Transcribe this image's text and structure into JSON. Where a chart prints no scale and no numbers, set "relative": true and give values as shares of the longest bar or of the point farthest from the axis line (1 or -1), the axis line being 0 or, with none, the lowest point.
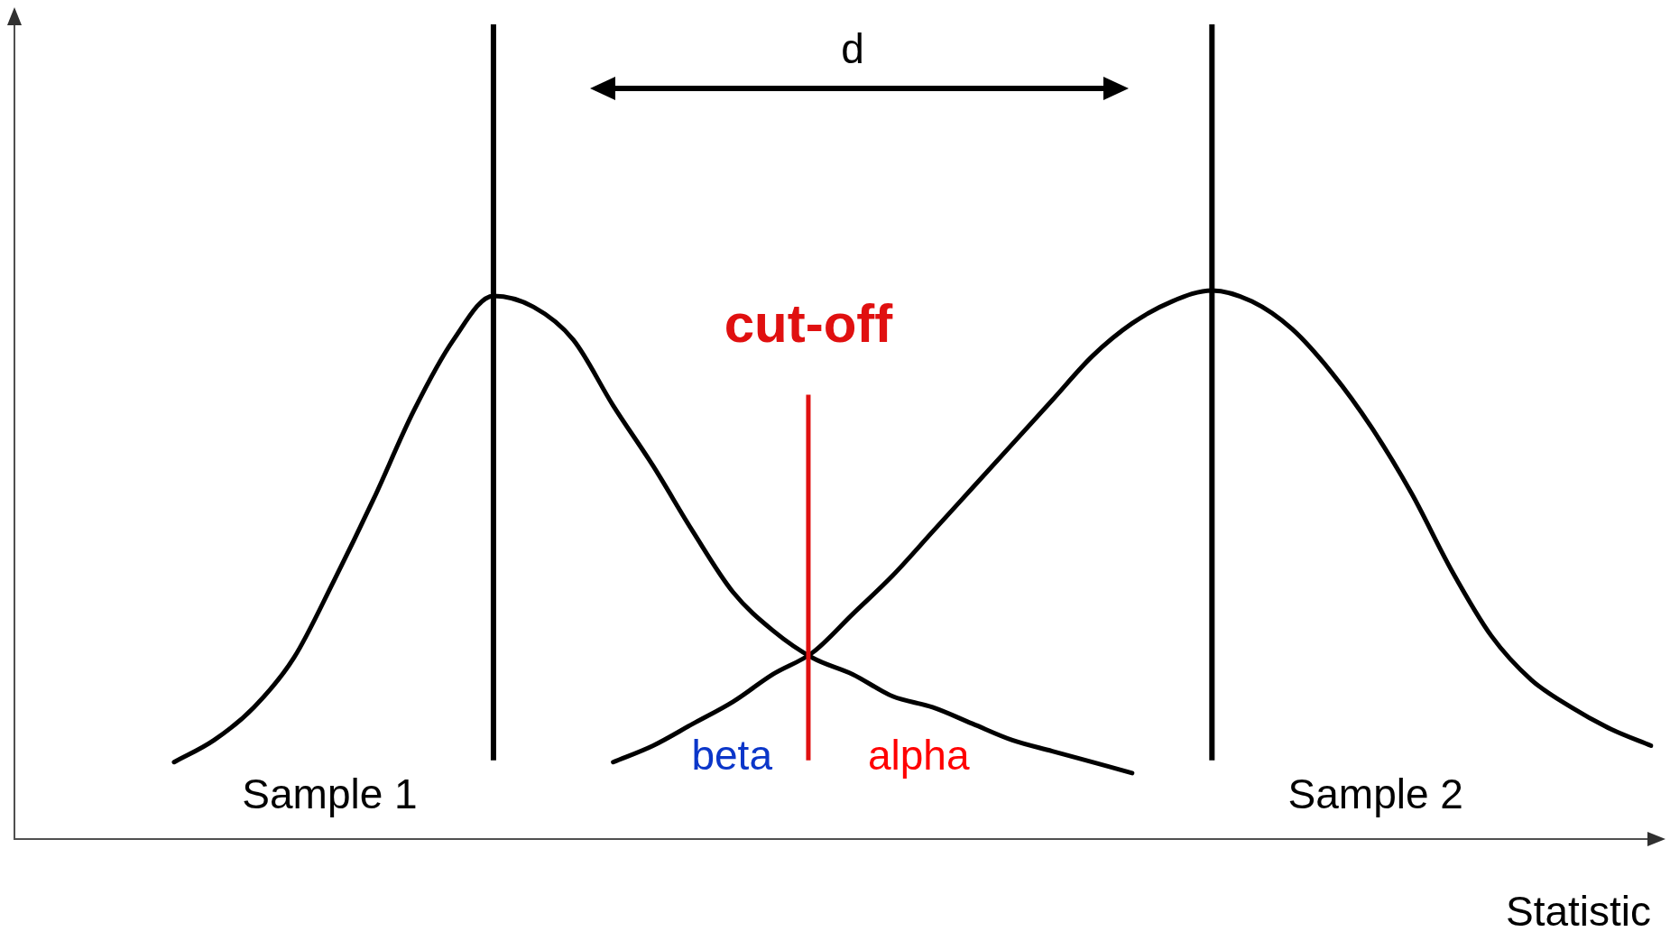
{
  "chart_data": {
    "type": "line",
    "relative": true,
    "xlabel": "Statistic",
    "categories": [
      null,
      null,
      null,
      null,
      null,
      null,
      null,
      null,
      null,
      null,
      null,
      null,
      null,
      null,
      null,
      null,
      null,
      null,
      null,
      null,
      null,
      null,
      null,
      null,
      null,
      null,
      null,
      null,
      null,
      null,
      null,
      null,
      null,
      null,
      null,
      null,
      null,
      null,
      null,
      null,
      null,
      null
    ],
    "series": [
      {
        "name": "Sample 1",
        "color": "#000000",
        "values": [
          null,
          null,
          null,
          null,
          0.14,
          0.18,
          0.24,
          0.33,
          0.47,
          0.62,
          0.78,
          0.91,
          0.99,
          0.97,
          0.91,
          0.79,
          0.68,
          0.56,
          0.45,
          0.38,
          0.33,
          0.3,
          0.26,
          0.24,
          0.21,
          0.18,
          0.16,
          0.14,
          0.12,
          null,
          null,
          null,
          null,
          null,
          null,
          null,
          null,
          null,
          null,
          null,
          null,
          null
        ]
      },
      {
        "name": "Sample 2",
        "color": "#000000",
        "values": [
          null,
          null,
          null,
          null,
          null,
          null,
          null,
          null,
          null,
          null,
          null,
          null,
          null,
          null,
          null,
          0.14,
          0.17,
          0.21,
          0.25,
          0.3,
          0.34,
          0.41,
          0.48,
          0.56,
          0.64,
          0.72,
          0.8,
          0.88,
          0.94,
          0.98,
          1,
          0.98,
          0.93,
          0.85,
          0.75,
          0.63,
          0.49,
          0.37,
          0.29,
          0.24,
          0.2,
          0.17
        ]
      }
    ],
    "annotations": [
      "d",
      "cut-off",
      "beta",
      "alpha"
    ],
    "legend": false,
    "grid": false,
    "marker": "none",
    "line_style": "solid"
  }
}
